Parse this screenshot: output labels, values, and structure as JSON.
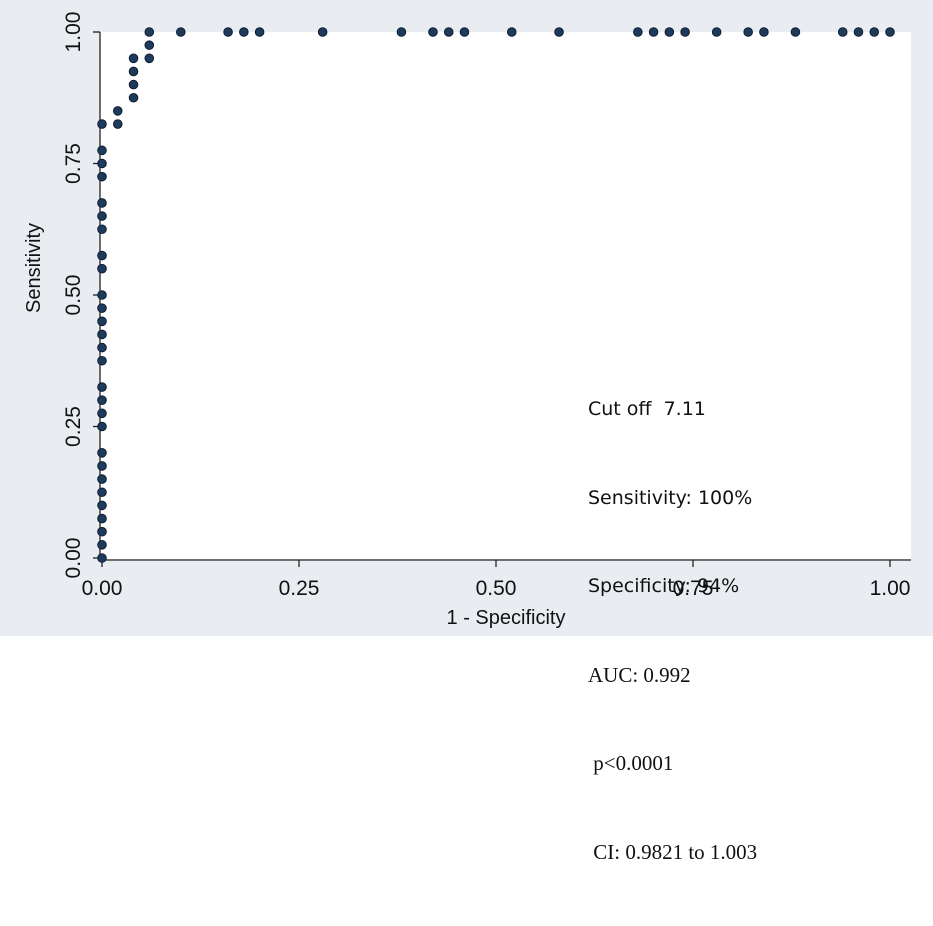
{
  "chart_data": {
    "type": "scatter",
    "xlabel": "1 - Specificity",
    "ylabel": "Sensitivity",
    "xlim": [
      0,
      1
    ],
    "ylim": [
      0,
      1
    ],
    "x_ticks": [
      "0.00",
      "0.25",
      "0.50",
      "0.75",
      "1.00"
    ],
    "y_ticks": [
      "0.00",
      "0.25",
      "0.50",
      "0.75",
      "1.00"
    ],
    "grid": false,
    "point_color": "#1f3b5c",
    "plot_background": "#ffffff",
    "outer_background": "#e9edf1",
    "points": [
      [
        0,
        0.0
      ],
      [
        0,
        0.025
      ],
      [
        0,
        0.05
      ],
      [
        0,
        0.075
      ],
      [
        0,
        0.1
      ],
      [
        0,
        0.125
      ],
      [
        0,
        0.15
      ],
      [
        0,
        0.175
      ],
      [
        0,
        0.2
      ],
      [
        0,
        0.25
      ],
      [
        0,
        0.275
      ],
      [
        0,
        0.3
      ],
      [
        0,
        0.325
      ],
      [
        0,
        0.375
      ],
      [
        0,
        0.4
      ],
      [
        0,
        0.425
      ],
      [
        0,
        0.45
      ],
      [
        0,
        0.475
      ],
      [
        0,
        0.5
      ],
      [
        0,
        0.55
      ],
      [
        0,
        0.575
      ],
      [
        0,
        0.625
      ],
      [
        0,
        0.65
      ],
      [
        0,
        0.675
      ],
      [
        0,
        0.725
      ],
      [
        0,
        0.75
      ],
      [
        0,
        0.775
      ],
      [
        0,
        0.825
      ],
      [
        0.02,
        0.825
      ],
      [
        0.02,
        0.85
      ],
      [
        0.04,
        0.875
      ],
      [
        0.04,
        0.9
      ],
      [
        0.04,
        0.925
      ],
      [
        0.04,
        0.95
      ],
      [
        0.06,
        0.95
      ],
      [
        0.06,
        0.975
      ],
      [
        0.06,
        1.0
      ],
      [
        0.1,
        1.0
      ],
      [
        0.16,
        1.0
      ],
      [
        0.18,
        1.0
      ],
      [
        0.2,
        1.0
      ],
      [
        0.28,
        1.0
      ],
      [
        0.38,
        1.0
      ],
      [
        0.42,
        1.0
      ],
      [
        0.44,
        1.0
      ],
      [
        0.46,
        1.0
      ],
      [
        0.52,
        1.0
      ],
      [
        0.58,
        1.0
      ],
      [
        0.68,
        1.0
      ],
      [
        0.7,
        1.0
      ],
      [
        0.72,
        1.0
      ],
      [
        0.74,
        1.0
      ],
      [
        0.78,
        1.0
      ],
      [
        0.82,
        1.0
      ],
      [
        0.84,
        1.0
      ],
      [
        0.88,
        1.0
      ],
      [
        0.94,
        1.0
      ],
      [
        0.96,
        1.0
      ],
      [
        0.98,
        1.0
      ],
      [
        1.0,
        1.0
      ]
    ],
    "annotations": {
      "cutoff": "Cut off  7.11",
      "sensitivity": "Sensitivity: 100%",
      "specificity": "Specificity: 94%",
      "auc": "AUC: 0.992",
      "p_value": " p<0.0001",
      "ci": " CI: 0.9821 to 1.003"
    }
  }
}
